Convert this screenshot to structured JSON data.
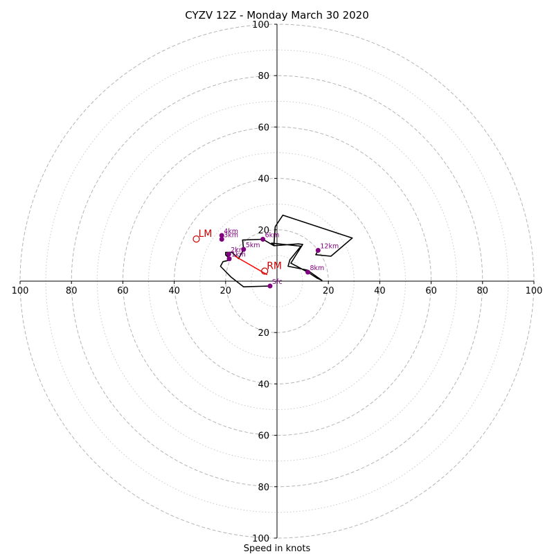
{
  "chart_data": {
    "type": "line",
    "title": "CYZV 12Z - Monday March 30 2020",
    "xlabel": "Speed in knots",
    "ylabel": "",
    "xlim": [
      -100,
      100
    ],
    "ylim": [
      -100,
      100
    ],
    "rings_major": [
      20,
      40,
      60,
      80,
      100
    ],
    "rings_minor": [
      10,
      30,
      50,
      70,
      90
    ],
    "x_ticks": [
      {
        "value": -100,
        "label": "100"
      },
      {
        "value": -80,
        "label": "80"
      },
      {
        "value": -60,
        "label": "60"
      },
      {
        "value": -40,
        "label": "40"
      },
      {
        "value": -20,
        "label": "20"
      },
      {
        "value": 20,
        "label": "20"
      },
      {
        "value": 40,
        "label": "40"
      },
      {
        "value": 60,
        "label": "60"
      },
      {
        "value": 80,
        "label": "80"
      },
      {
        "value": 100,
        "label": "100"
      }
    ],
    "y_ticks": [
      {
        "value": 100,
        "label": "100"
      },
      {
        "value": 80,
        "label": "80"
      },
      {
        "value": 60,
        "label": "60"
      },
      {
        "value": 40,
        "label": "40"
      },
      {
        "value": 20,
        "label": "20"
      },
      {
        "value": -20,
        "label": "20"
      },
      {
        "value": -40,
        "label": "40"
      },
      {
        "value": -60,
        "label": "60"
      },
      {
        "value": -80,
        "label": "80"
      },
      {
        "value": -100,
        "label": "100"
      }
    ],
    "hodograph": {
      "color": "#000000",
      "points": [
        [
          -2.7,
          -1.9
        ],
        [
          -13,
          -2.2
        ],
        [
          -18,
          1.7
        ],
        [
          -22,
          5.8
        ],
        [
          -21,
          7.6
        ],
        [
          -18,
          8.3
        ],
        [
          -20,
          10.2
        ],
        [
          -20,
          11.2
        ],
        [
          -17.5,
          11.2
        ],
        [
          -15,
          8.8
        ],
        [
          -13,
          12.2
        ],
        [
          -13.4,
          16
        ],
        [
          -5.5,
          16.3
        ],
        [
          -1.2,
          13.8
        ],
        [
          -2.1,
          14.8
        ],
        [
          9.3,
          13.6
        ],
        [
          5,
          8.3
        ],
        [
          4.3,
          5.8
        ],
        [
          11.8,
          4.3
        ],
        [
          17.5,
          0.3
        ],
        [
          15.5,
          1.2
        ],
        [
          12,
          3.5
        ],
        [
          5.4,
          7
        ],
        [
          10,
          14.3
        ],
        [
          8.3,
          14.5
        ],
        [
          -1.2,
          13.8
        ],
        [
          -0.7,
          21.2
        ],
        [
          2.3,
          25.7
        ],
        [
          29.3,
          16.8
        ],
        [
          21,
          9.7
        ],
        [
          15.1,
          10.3
        ],
        [
          15.8,
          11.6
        ]
      ]
    },
    "height_markers": {
      "color": "#800080",
      "points": [
        {
          "x": -2.7,
          "y": -1.9,
          "label": "Sfc"
        },
        {
          "x": -18.6,
          "y": 8.7,
          "label": "1km"
        },
        {
          "x": -18.8,
          "y": 10.5,
          "label": "2km"
        },
        {
          "x": -21.5,
          "y": 16.3,
          "label": "3km"
        },
        {
          "x": -21.5,
          "y": 17.8,
          "label": "4km"
        },
        {
          "x": -13,
          "y": 12.4,
          "label": "5km"
        },
        {
          "x": -5.5,
          "y": 16.3,
          "label": "6km"
        },
        {
          "x": 12,
          "y": 3.5,
          "label": "8km"
        },
        {
          "x": 16,
          "y": 12,
          "label": "12km"
        }
      ]
    },
    "mean_wind_line": {
      "color": "#ff0000",
      "points": [
        [
          -16.5,
          9.8
        ],
        [
          -3.8,
          2.5
        ]
      ]
    },
    "storm_motion": {
      "color": "#cc0000",
      "points": [
        {
          "x": -31.4,
          "y": 16.4,
          "label": "LM"
        },
        {
          "x": -4.8,
          "y": 3.9,
          "label": "RM"
        }
      ]
    }
  }
}
